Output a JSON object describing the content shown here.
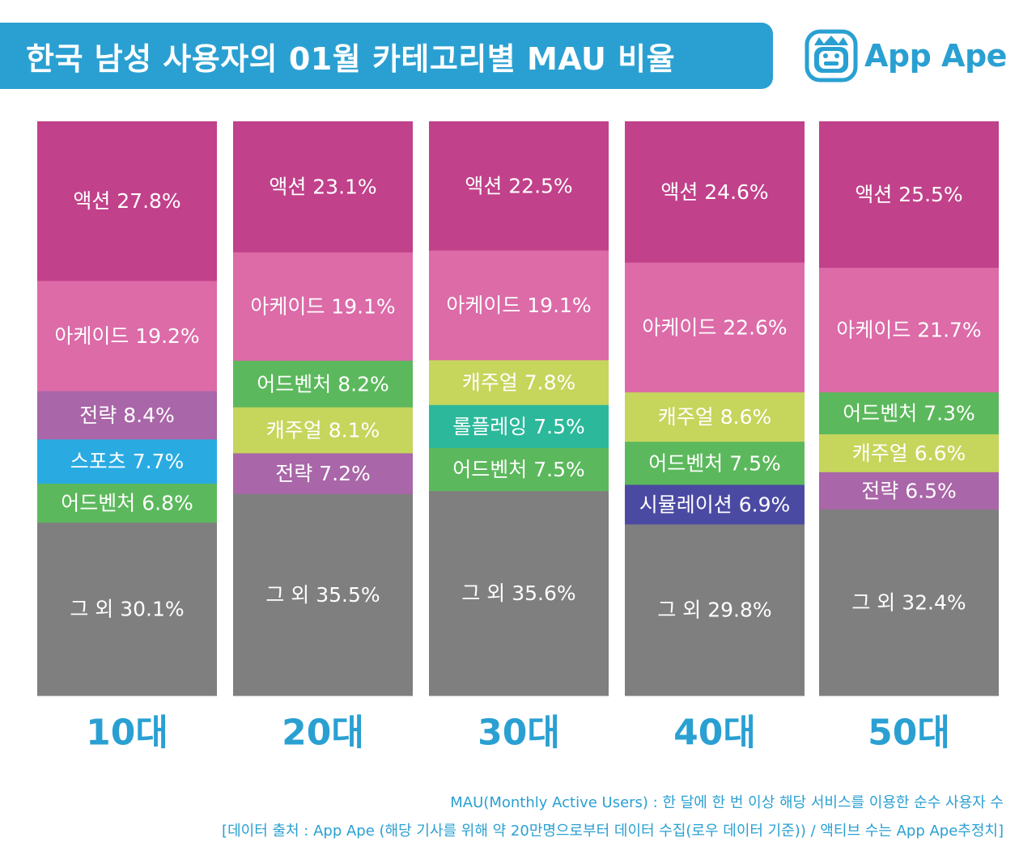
{
  "header": {
    "title": "한국 남성 사용자의 01월 카테고리별 MAU 비율"
  },
  "logo": {
    "text": "App Ape",
    "icon": "ape-face-icon"
  },
  "footnotes": {
    "line1": "MAU(Monthly Active Users) : 한 달에 한 번 이상 해당 서비스를 이용한 순수 사용자 수",
    "line2": "[데이터 출처 : App Ape (해당 기사를 위해 약 20만명으로부터 데이터 수집(로우 데이터 기준)) / 액티브 수는 App Ape추정치]"
  },
  "colors": {
    "title_bg": "#2aa0d2",
    "액션": "#c1418a",
    "아케이드": "#dc6ba8",
    "전략": "#a966a8",
    "스포츠": "#29abe2",
    "어드벤처": "#5cb85c",
    "캐주얼": "#c6d55c",
    "롤플레잉": "#2cb89b",
    "시뮬레이션": "#4b4aa3",
    "그 외": "#7f7f7f"
  },
  "chart_data": {
    "type": "bar",
    "stacked": true,
    "normalized": true,
    "title": "한국 남성 사용자의 01월 카테고리별 MAU 비율",
    "unit": "%",
    "categories": [
      "10대",
      "20대",
      "30대",
      "40대",
      "50대"
    ],
    "bars": [
      {
        "category": "10대",
        "segments": [
          {
            "name": "액션",
            "value": 27.8,
            "label": "액션 27.8%"
          },
          {
            "name": "아케이드",
            "value": 19.2,
            "label": "아케이드 19.2%"
          },
          {
            "name": "전략",
            "value": 8.4,
            "label": "전략 8.4%"
          },
          {
            "name": "스포츠",
            "value": 7.7,
            "label": "스포츠 7.7%"
          },
          {
            "name": "어드벤처",
            "value": 6.8,
            "label": "어드벤처 6.8%"
          },
          {
            "name": "그 외",
            "value": 30.1,
            "label": "그 외 30.1%"
          }
        ]
      },
      {
        "category": "20대",
        "segments": [
          {
            "name": "액션",
            "value": 23.1,
            "label": "액션 23.1%"
          },
          {
            "name": "아케이드",
            "value": 19.1,
            "label": "아케이드 19.1%"
          },
          {
            "name": "어드벤처",
            "value": 8.2,
            "label": "어드벤처 8.2%"
          },
          {
            "name": "캐주얼",
            "value": 8.1,
            "label": "캐주얼 8.1%"
          },
          {
            "name": "전략",
            "value": 7.2,
            "label": "전략 7.2%"
          },
          {
            "name": "그 외",
            "value": 35.5,
            "label": "그 외 35.5%"
          }
        ]
      },
      {
        "category": "30대",
        "segments": [
          {
            "name": "액션",
            "value": 22.5,
            "label": "액션 22.5%"
          },
          {
            "name": "아케이드",
            "value": 19.1,
            "label": "아케이드 19.1%"
          },
          {
            "name": "캐주얼",
            "value": 7.8,
            "label": "캐주얼 7.8%"
          },
          {
            "name": "롤플레잉",
            "value": 7.5,
            "label": "롤플레잉 7.5%"
          },
          {
            "name": "어드벤처",
            "value": 7.5,
            "label": "어드벤처 7.5%"
          },
          {
            "name": "그 외",
            "value": 35.6,
            "label": "그 외 35.6%"
          }
        ]
      },
      {
        "category": "40대",
        "segments": [
          {
            "name": "액션",
            "value": 24.6,
            "label": "액션 24.6%"
          },
          {
            "name": "아케이드",
            "value": 22.6,
            "label": "아케이드 22.6%"
          },
          {
            "name": "캐주얼",
            "value": 8.6,
            "label": "캐주얼 8.6%"
          },
          {
            "name": "어드벤처",
            "value": 7.5,
            "label": "어드벤처 7.5%"
          },
          {
            "name": "시뮬레이션",
            "value": 6.9,
            "label": "시뮬레이션 6.9%"
          },
          {
            "name": "그 외",
            "value": 29.8,
            "label": "그 외 29.8%"
          }
        ]
      },
      {
        "category": "50대",
        "segments": [
          {
            "name": "액션",
            "value": 25.5,
            "label": "액션 25.5%"
          },
          {
            "name": "아케이드",
            "value": 21.7,
            "label": "아케이드 21.7%"
          },
          {
            "name": "어드벤처",
            "value": 7.3,
            "label": "어드벤처 7.3%"
          },
          {
            "name": "캐주얼",
            "value": 6.6,
            "label": "캐주얼 6.6%"
          },
          {
            "name": "전략",
            "value": 6.5,
            "label": "전략 6.5%"
          },
          {
            "name": "그 외",
            "value": 32.4,
            "label": "그 외 32.4%"
          }
        ]
      }
    ]
  }
}
